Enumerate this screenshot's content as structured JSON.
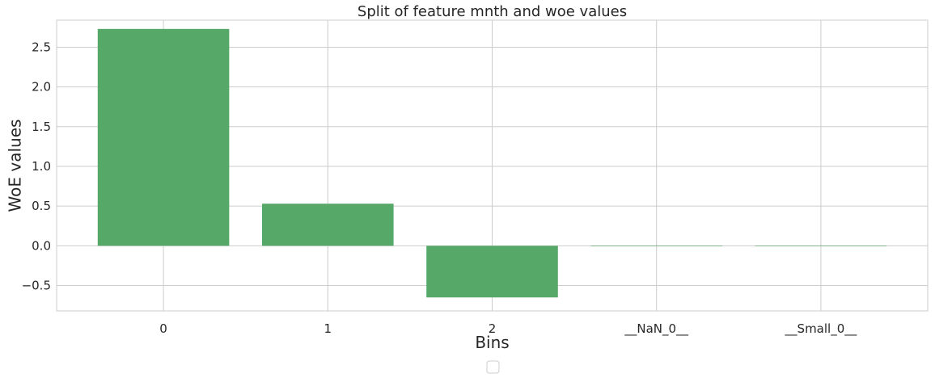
{
  "chart_data": {
    "type": "bar",
    "title": "Split of feature mnth and woe values",
    "xlabel": "Bins",
    "ylabel": "WoE values",
    "categories": [
      "0",
      "1",
      "2",
      "__NaN_0__",
      "__Small_0__"
    ],
    "values": [
      2.73,
      0.53,
      -0.65,
      0.0,
      0.0
    ],
    "ylim": [
      -0.82,
      2.84
    ],
    "yticks": [
      -0.5,
      0.0,
      0.5,
      1.0,
      1.5,
      2.0,
      2.5
    ],
    "ytick_labels": [
      "−0.5",
      "0.0",
      "0.5",
      "1.0",
      "1.5",
      "2.0",
      "2.5"
    ],
    "grid": true,
    "legend": "empty legend box, bottom-center below axes",
    "colors": {
      "bar": "#55a868",
      "grid": "#cccccc",
      "spine": "#cccccc",
      "text": "#262626",
      "legend_border": "#cccccc"
    }
  }
}
